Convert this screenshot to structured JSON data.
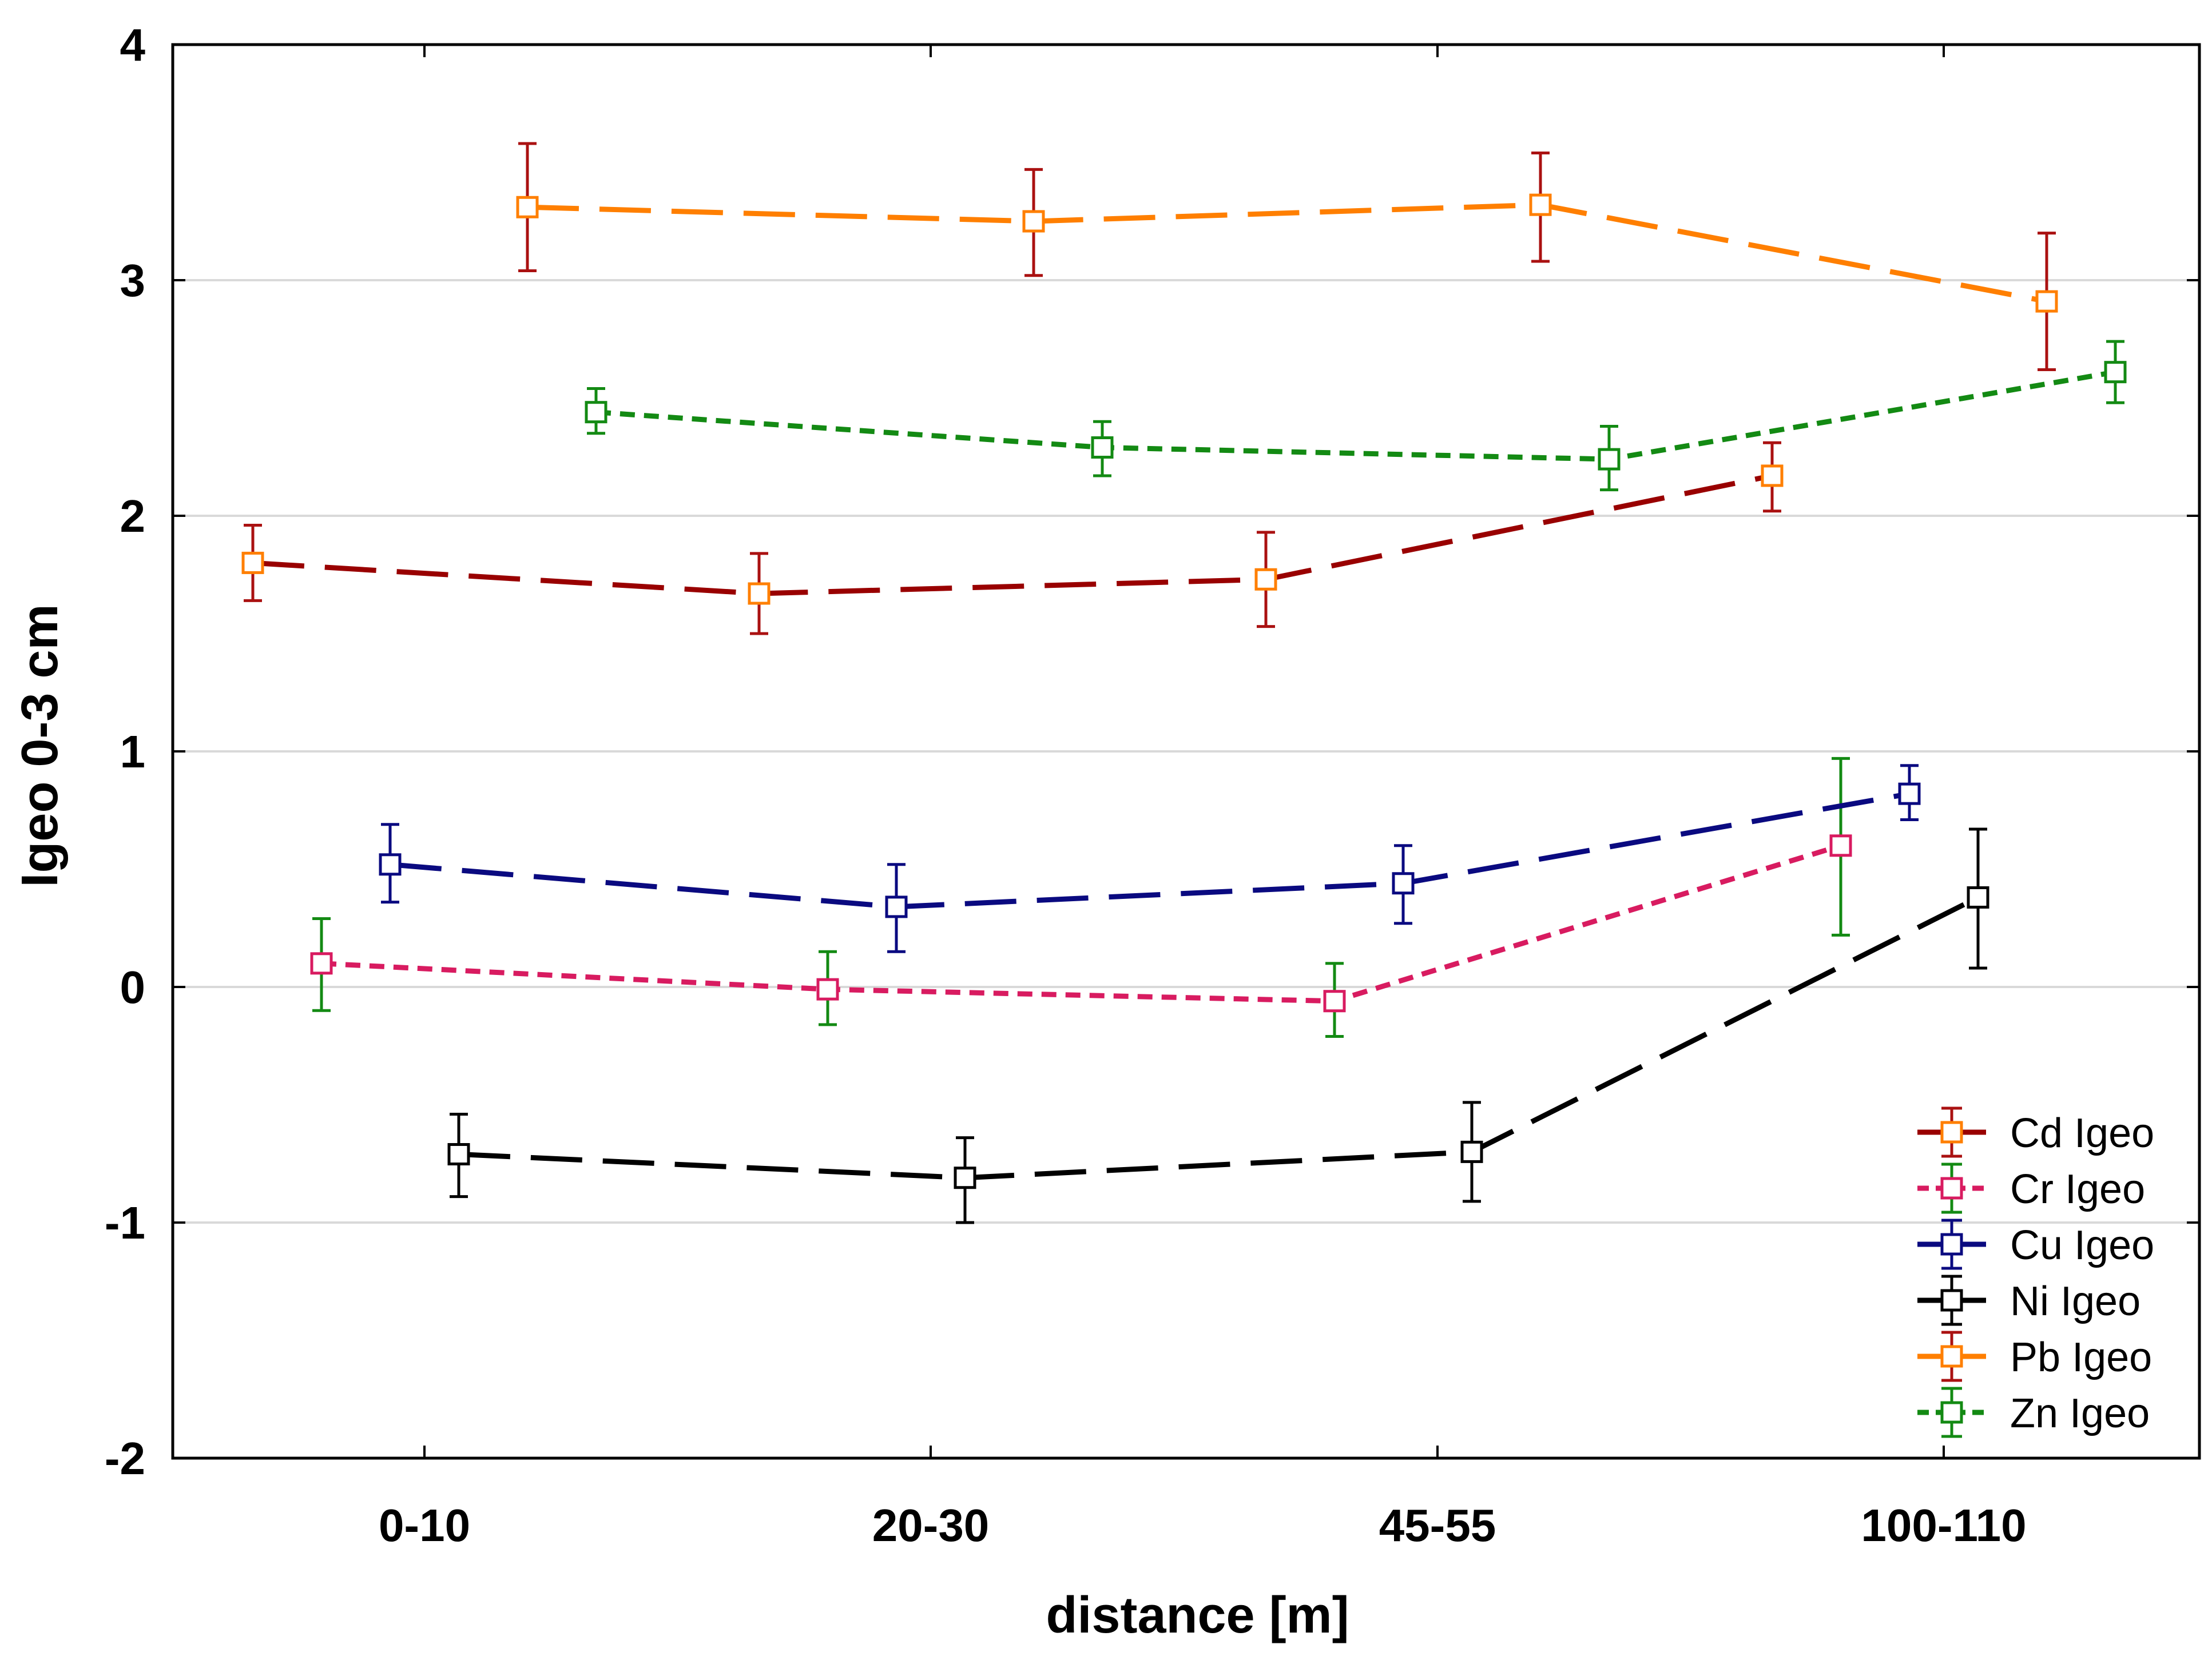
{
  "chart_data": {
    "type": "line",
    "title": "",
    "xlabel": "distance [m]",
    "ylabel": "Igeo 0-3 cm",
    "categories": [
      "0-10",
      "20-30",
      "45-55",
      "100-110"
    ],
    "ylim": [
      -2,
      4
    ],
    "yticks": [
      "-2",
      "-1",
      "0",
      "1",
      "2",
      "3",
      "4"
    ],
    "grid": "horizontal",
    "legend_position": "bottom-right",
    "series": [
      {
        "name": "Cd Igeo",
        "values": [
          1.8,
          1.67,
          1.73,
          2.17
        ],
        "err_low": [
          1.64,
          1.5,
          1.53,
          2.02
        ],
        "err_high": [
          1.96,
          1.84,
          1.93,
          2.31
        ],
        "line_color": "#990000",
        "marker_color": "#ff7f00",
        "error_color": "#aa1111",
        "dash": "long-dash"
      },
      {
        "name": "Cr Igeo",
        "values": [
          0.1,
          -0.01,
          -0.06,
          0.6
        ],
        "err_low": [
          -0.1,
          -0.16,
          -0.21,
          0.22
        ],
        "err_high": [
          0.29,
          0.15,
          0.1,
          0.97
        ],
        "line_color": "#d81b60",
        "marker_color": "#d81b60",
        "error_color": "#138a13",
        "dash": "short-dash"
      },
      {
        "name": "Cu Igeo",
        "values": [
          0.52,
          0.34,
          0.44,
          0.82
        ],
        "err_low": [
          0.36,
          0.15,
          0.27,
          0.71
        ],
        "err_high": [
          0.69,
          0.52,
          0.6,
          0.94
        ],
        "line_color": "#0a0a80",
        "marker_color": "#0a0a80",
        "error_color": "#0a0a80",
        "dash": "long-dash"
      },
      {
        "name": "Ni Igeo",
        "values": [
          -0.71,
          -0.81,
          -0.7,
          0.38
        ],
        "err_low": [
          -0.89,
          -1.0,
          -0.91,
          0.08
        ],
        "err_high": [
          -0.54,
          -0.64,
          -0.49,
          0.67
        ],
        "line_color": "#000000",
        "marker_color": "#000000",
        "error_color": "#000000",
        "dash": "long-dash"
      },
      {
        "name": "Pb Igeo",
        "values": [
          3.31,
          3.25,
          3.32,
          2.91
        ],
        "err_low": [
          3.04,
          3.02,
          3.08,
          2.62
        ],
        "err_high": [
          3.58,
          3.47,
          3.54,
          3.2
        ],
        "line_color": "#ff7f00",
        "marker_color": "#ff7f00",
        "error_color": "#aa1111",
        "dash": "long-dash"
      },
      {
        "name": "Zn Igeo",
        "values": [
          2.44,
          2.29,
          2.24,
          2.61
        ],
        "err_low": [
          2.35,
          2.17,
          2.11,
          2.48
        ],
        "err_high": [
          2.54,
          2.4,
          2.38,
          2.74
        ],
        "line_color": "#138a13",
        "marker_color": "#138a13",
        "error_color": "#138a13",
        "dash": "short-dash"
      }
    ]
  }
}
